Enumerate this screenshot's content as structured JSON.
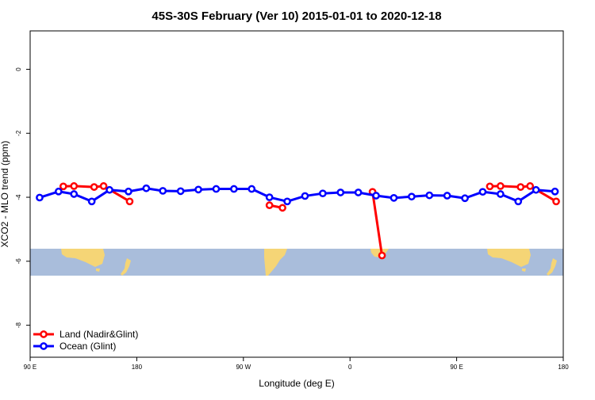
{
  "chart_data": {
    "type": "line",
    "title": "45S-30S February (Ver 10)   2015-01-01 to 2020-12-18",
    "xlabel": "Longitude (deg E)",
    "ylabel": "XCO2 - MLO trend (ppm)",
    "xlim": [
      90,
      540
    ],
    "ylim": [
      -9.0,
      1.2
    ],
    "x_ticks": [
      {
        "value": 90,
        "label": "90 E"
      },
      {
        "value": 180,
        "label": "180"
      },
      {
        "value": 270,
        "label": "90 W"
      },
      {
        "value": 360,
        "label": "0"
      },
      {
        "value": 450,
        "label": "90 E"
      },
      {
        "value": 540,
        "label": "180"
      }
    ],
    "y_ticks": [
      {
        "value": 0,
        "label": "0"
      },
      {
        "value": -2,
        "label": "-2"
      },
      {
        "value": -4,
        "label": "-4"
      },
      {
        "value": -6,
        "label": "-6"
      },
      {
        "value": -8,
        "label": "-8"
      }
    ],
    "map_band": {
      "y_range": [
        -6.35,
        -5.5
      ],
      "ocean_color": "#a9bddb",
      "land_color": "#f5d576"
    },
    "legend_position": "bottom-left",
    "series": [
      {
        "name": "Land (Nadir&Glint)",
        "color": "#ff0000",
        "segments": [
          [
            [
              118,
              -3.66
            ],
            [
              127,
              -3.65
            ],
            [
              144,
              -3.68
            ],
            [
              152,
              -3.65
            ],
            [
              174,
              -4.13
            ]
          ],
          [
            [
              292,
              -4.25
            ],
            [
              303,
              -4.33
            ]
          ],
          [
            [
              379,
              -3.83
            ],
            [
              387,
              -5.82
            ]
          ],
          [
            [
              478,
              -3.66
            ],
            [
              487,
              -3.65
            ],
            [
              504,
              -3.68
            ],
            [
              512,
              -3.65
            ],
            [
              534,
              -4.13
            ]
          ]
        ]
      },
      {
        "name": "Ocean (Glint)",
        "color": "#0000ff",
        "segments": [
          [
            [
              98,
              -4.01
            ],
            [
              114,
              -3.82
            ],
            [
              127,
              -3.9
            ],
            [
              142,
              -4.13
            ],
            [
              157,
              -3.77
            ],
            [
              173,
              -3.82
            ],
            [
              188,
              -3.72
            ],
            [
              202,
              -3.8
            ],
            [
              217,
              -3.81
            ],
            [
              232,
              -3.76
            ],
            [
              247,
              -3.74
            ],
            [
              262,
              -3.74
            ],
            [
              277,
              -3.74
            ],
            [
              292,
              -4.0
            ],
            [
              307,
              -4.13
            ],
            [
              322,
              -3.96
            ],
            [
              337,
              -3.88
            ],
            [
              352,
              -3.85
            ],
            [
              367,
              -3.85
            ],
            [
              382,
              -3.95
            ],
            [
              397,
              -4.02
            ],
            [
              412,
              -3.98
            ],
            [
              427,
              -3.94
            ],
            [
              442,
              -3.95
            ],
            [
              457,
              -4.03
            ],
            [
              472,
              -3.83
            ],
            [
              487,
              -3.9
            ],
            [
              502,
              -4.13
            ],
            [
              517,
              -3.77
            ],
            [
              533,
              -3.82
            ]
          ]
        ]
      }
    ]
  }
}
